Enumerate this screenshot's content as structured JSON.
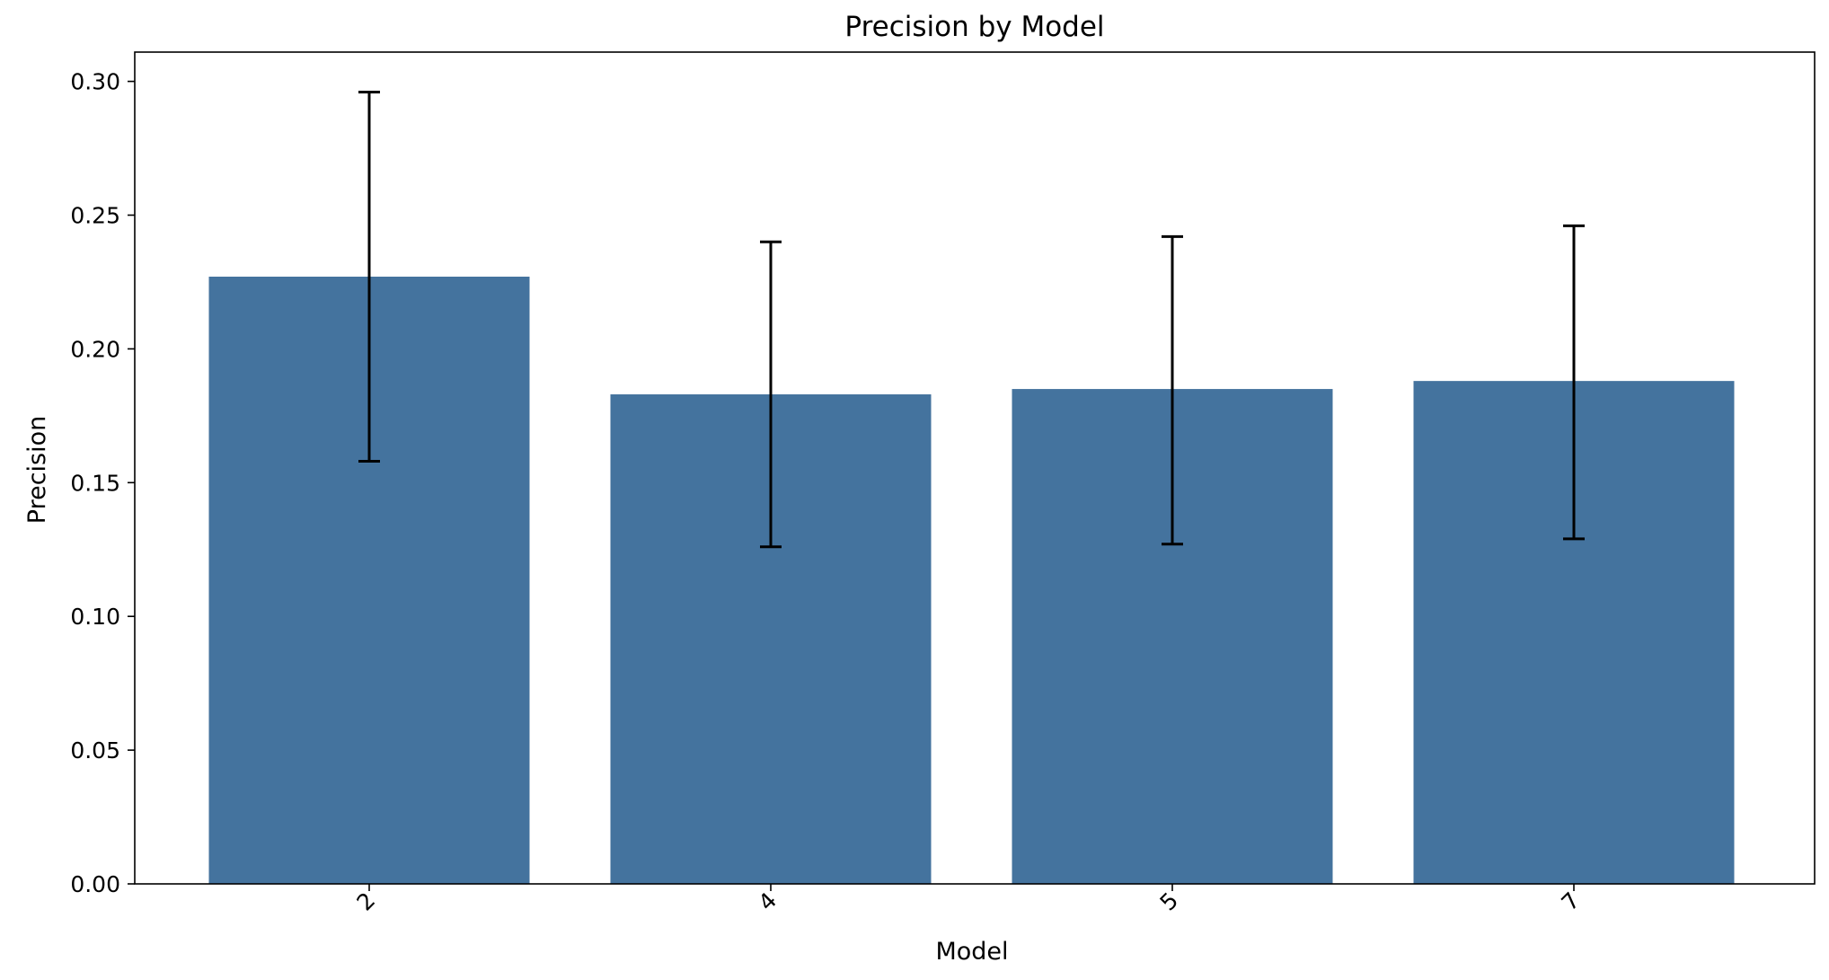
{
  "chart_data": {
    "type": "bar",
    "title": "Precision by Model",
    "xlabel": "Model",
    "ylabel": "Precision",
    "categories": [
      "2",
      "4",
      "5",
      "7"
    ],
    "values": [
      0.227,
      0.183,
      0.185,
      0.188
    ],
    "error_low": [
      0.158,
      0.126,
      0.127,
      0.129
    ],
    "error_high": [
      0.296,
      0.24,
      0.242,
      0.246
    ],
    "ylim": [
      0.0,
      0.31
    ],
    "yticks": [
      0.0,
      0.05,
      0.1,
      0.15,
      0.2,
      0.25,
      0.3
    ],
    "ytick_labels": [
      "0.00",
      "0.05",
      "0.10",
      "0.15",
      "0.20",
      "0.25",
      "0.30"
    ],
    "grid": false,
    "legend": "none",
    "colors": {
      "bar": "#44739e",
      "errorbar": "#000000"
    }
  }
}
